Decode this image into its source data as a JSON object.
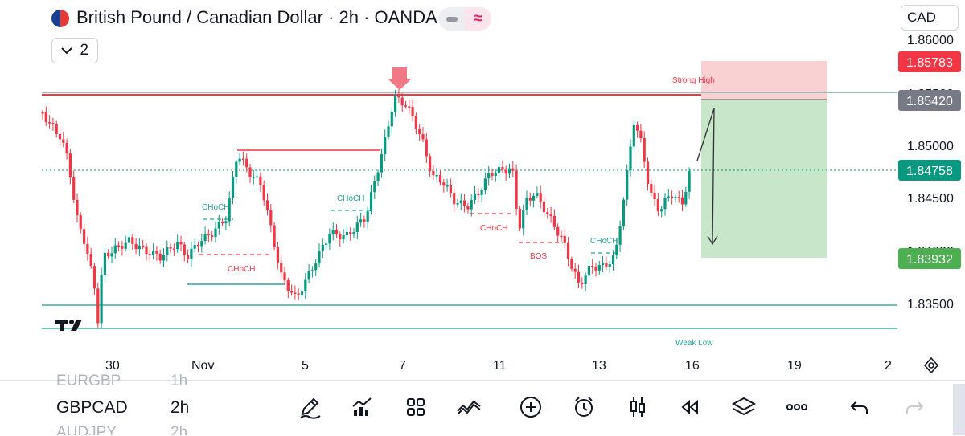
{
  "header": {
    "title": "British Pound / Canadian Dollar · 2h · OANDA",
    "currency": "CAD",
    "indicator_count": "2",
    "colors": {
      "accent": "#e91e63"
    }
  },
  "price_axis": {
    "ticks": [
      "1.86000",
      "1.85500",
      "1.85000",
      "1.84500",
      "1.84000",
      "1.83500"
    ],
    "badges": [
      {
        "label": "1.85783",
        "color": "#f23645"
      },
      {
        "label": "1.85420",
        "color": "#787b86"
      },
      {
        "label": "1.84758",
        "color": "#089981"
      },
      {
        "label": "1.83932",
        "color": "#4caf50"
      }
    ]
  },
  "time_axis": {
    "ticks": [
      "30",
      "Nov",
      "5",
      "7",
      "11",
      "13",
      "16",
      "19",
      "2"
    ]
  },
  "annotations": {
    "strong_high": "Strong High",
    "weak_low": "Weak Low",
    "choch": "CHoCH",
    "bos": "BOS"
  },
  "chart_data": {
    "type": "candlestick",
    "symbol": "GBPCAD",
    "timeframe": "2h",
    "y_ticks": [
      1.835,
      1.84,
      1.845,
      1.85,
      1.855,
      1.86
    ],
    "x_ticks": [
      "30",
      "Nov",
      "5",
      "7",
      "11",
      "13",
      "16",
      "19",
      "2"
    ],
    "last_price": 1.84758,
    "strong_high": 1.8542,
    "weak_low": 1.833,
    "position": {
      "side": "short",
      "entry": 1.8542,
      "stop": 1.85783,
      "target": 1.83932
    },
    "colors": {
      "up": "#089981",
      "down": "#f23645"
    }
  },
  "watchlist": {
    "rows": [
      {
        "symbol": "EURGBP",
        "tf": "1h"
      },
      {
        "symbol": "GBPCAD",
        "tf": "2h"
      },
      {
        "symbol": "AUDJPY",
        "tf": "2h"
      }
    ]
  },
  "toolbar": {
    "icons": [
      "pencil-icon",
      "indicators-icon",
      "templates-icon",
      "patterns-icon",
      "add-icon",
      "alert-icon",
      "candles-icon",
      "replay-icon",
      "layers-icon",
      "more-icon",
      "undo-icon",
      "redo-icon"
    ]
  }
}
